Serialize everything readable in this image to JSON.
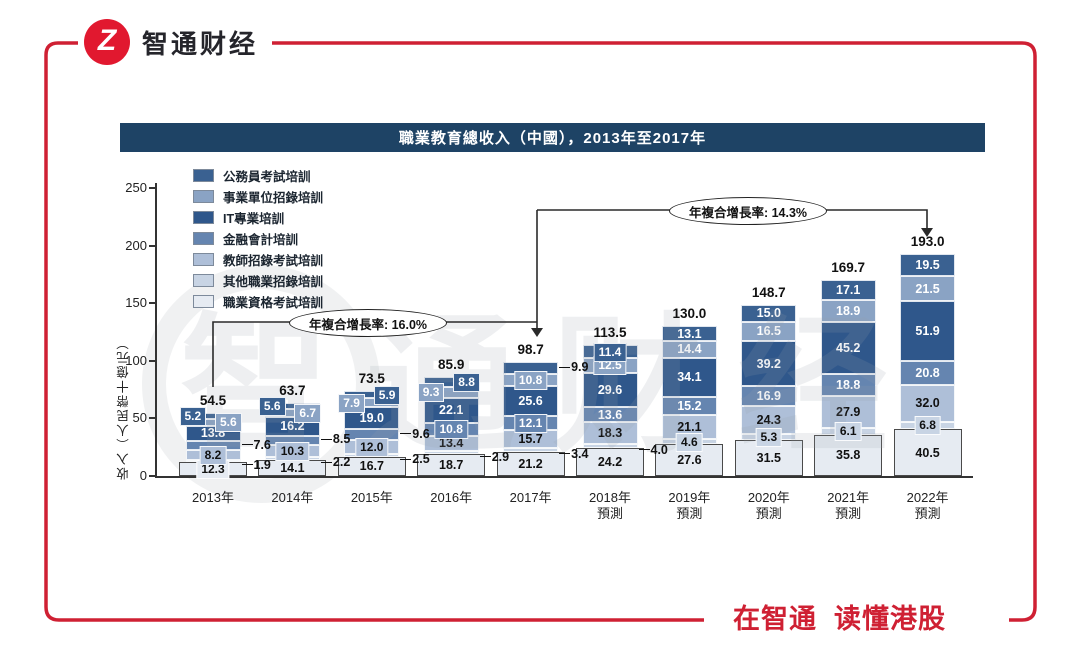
{
  "page": {
    "logo": {
      "glyph": "Z",
      "brand_name": "智通财经"
    },
    "footer": {
      "slogan": "在智通  读懂港股"
    },
    "colors": {
      "brand_red": "#cf2033",
      "title_bar_bg": "#1e4365"
    }
  },
  "chart_data": {
    "type": "bar",
    "stacked": true,
    "title": "職業教育總收入（中國），2013年至2017年",
    "ylabel": "收入（人民幣十億元）",
    "ylim": [
      0,
      250
    ],
    "y_ticks": [
      "0",
      "50",
      "100",
      "150",
      "200",
      "250"
    ],
    "grid": false,
    "legend_position": "top-left",
    "categories": [
      {
        "label": "2013年",
        "sub": ""
      },
      {
        "label": "2014年",
        "sub": ""
      },
      {
        "label": "2015年",
        "sub": ""
      },
      {
        "label": "2016年",
        "sub": ""
      },
      {
        "label": "2017年",
        "sub": ""
      },
      {
        "label": "2018年",
        "sub": "預測"
      },
      {
        "label": "2019年",
        "sub": "預測"
      },
      {
        "label": "2020年",
        "sub": "預測"
      },
      {
        "label": "2021年",
        "sub": "預測"
      },
      {
        "label": "2022年",
        "sub": "預測"
      }
    ],
    "totals": [
      "54.5",
      "63.7",
      "73.5",
      "85.9",
      "98.7",
      "113.5",
      "130.0",
      "148.7",
      "169.7",
      "193.0"
    ],
    "series": [
      {
        "name": "公務員考試培訓",
        "color": "#3a6191",
        "text": "#ffffff",
        "values": [
          "5.2",
          "5.6",
          "5.9",
          "8.8",
          "9.9",
          "11.4",
          "13.1",
          "15.0",
          "17.1",
          "19.5"
        ]
      },
      {
        "name": "事業單位招錄培訓",
        "color": "#8aa3c4",
        "text": "#ffffff",
        "values": [
          "5.6",
          "6.7",
          "7.9",
          "9.3",
          "10.8",
          "12.5",
          "14.4",
          "16.5",
          "18.9",
          "21.5"
        ]
      },
      {
        "name": "IT專業培訓",
        "color": "#2f578b",
        "text": "#ffffff",
        "values": [
          "13.8",
          "16.2",
          "19.0",
          "22.1",
          "25.6",
          "29.6",
          "34.1",
          "39.2",
          "45.2",
          "51.9"
        ]
      },
      {
        "name": "金融會計培訓",
        "color": "#6585b0",
        "text": "#ffffff",
        "values": [
          "7.6",
          "8.5",
          "9.6",
          "10.8",
          "12.1",
          "13.6",
          "15.2",
          "16.9",
          "18.8",
          "20.8"
        ]
      },
      {
        "name": "教師招錄考試培訓",
        "color": "#aebfd8",
        "text": "#111111",
        "values": [
          "8.2",
          "10.3",
          "12.0",
          "13.4",
          "15.7",
          "18.3",
          "21.1",
          "24.3",
          "27.9",
          "32.0"
        ]
      },
      {
        "name": "其他職業招錄培訓",
        "color": "#c8d4e4",
        "text": "#111111",
        "values": [
          "1.9",
          "2.2",
          "2.5",
          "2.9",
          "3.4",
          "4.0",
          "4.6",
          "5.3",
          "6.1",
          "6.8"
        ]
      },
      {
        "name": "職業資格考試培訓",
        "color": "#e6ebf2",
        "text": "#111111",
        "values": [
          "12.3",
          "14.1",
          "16.7",
          "18.7",
          "21.2",
          "24.2",
          "27.6",
          "31.5",
          "35.8",
          "40.5"
        ]
      }
    ],
    "label_modes": {
      "0": {
        "0": "chip-left",
        "1": "chip-right",
        "3": "out",
        "5": "out"
      },
      "1": {
        "0": "chip-left",
        "1": "chip-right",
        "3": "out",
        "5": "out"
      },
      "2": {
        "0": "chip-right",
        "1": "chip-left",
        "3": "out",
        "5": "out"
      },
      "3": {
        "0": "chip-right",
        "1": "chip-left",
        "5": "out"
      },
      "4": {
        "0": "out",
        "5": "out"
      },
      "5": {
        "5": "out"
      }
    },
    "annotations": [
      {
        "label": "年複合增長率: 16.0%",
        "from": "2013",
        "to": "2017"
      },
      {
        "label": "年複合增長率: 14.3%",
        "from": "2017",
        "to": "2022"
      }
    ]
  }
}
